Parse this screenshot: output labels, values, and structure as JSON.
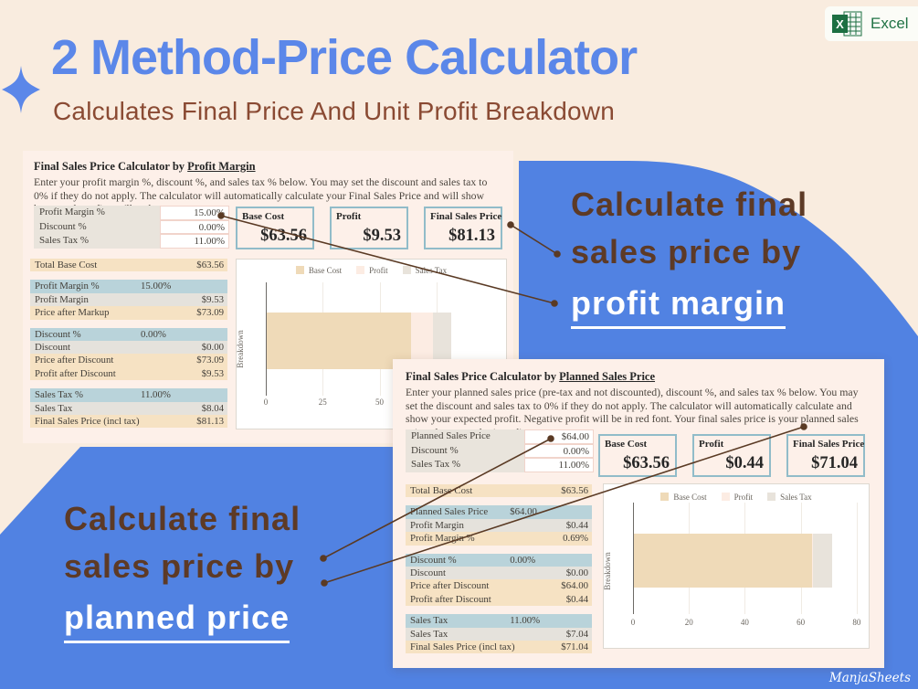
{
  "header": {
    "title": "2 Method-Price Calculator",
    "subtitle": "Calculates Final Price And Unit Profit Breakdown",
    "badge_label": "Excel"
  },
  "annotations": {
    "margin": {
      "line1": "Calculate final",
      "line2": "sales price by",
      "highlight": "profit margin"
    },
    "planned": {
      "line1": "Calculate final",
      "line2": "sales price by",
      "highlight": "planned price"
    }
  },
  "watermark": "ManjaSheets",
  "colors": {
    "background": "#f9ecdf",
    "blob_blue": "#5182e2",
    "title_blue": "#5b87e9",
    "brown_text": "#5d3a26",
    "subtitle_brown": "#8a4a33",
    "panel_bg": "#fdf0e9",
    "card_border": "#91bcc9",
    "row_tan": "#f6e2c3",
    "row_blue": "#b9d3da",
    "row_gray": "#e5e2dc",
    "excel_green": "#217346",
    "series": {
      "Base Cost": "#efdab8",
      "Profit": "#fcece3",
      "Sales Tax": "#e8e3db"
    }
  },
  "sheet_margin": {
    "heading_prefix": "Final Sales Price Calculator by ",
    "heading_link": "Profit Margin",
    "description": "Enter your profit margin %, discount %, and sales tax % below. You may set the discount and sales tax to 0% if they do not apply. The calculator will automatically calculate your Final Sales Price and will show how much profit you'll make.",
    "inputs": [
      {
        "label": "Profit Margin %",
        "value": "15.00%"
      },
      {
        "label": "Discount %",
        "value": "0.00%"
      },
      {
        "label": "Sales Tax %",
        "value": "11.00%"
      }
    ],
    "cards": [
      {
        "label": "Base Cost",
        "value": "$63.56"
      },
      {
        "label": "Profit",
        "value": "$9.53"
      },
      {
        "label": "Final Sales Price",
        "value": "$81.13"
      }
    ],
    "rows": [
      {
        "label": "Total Base Cost",
        "value": "$63.56",
        "style": "tan",
        "align": "right"
      },
      {
        "label": "Profit Margin %",
        "value": "15.00%",
        "style": "blue",
        "align": "mid",
        "gap": true
      },
      {
        "label": "Profit Margin",
        "value": "$9.53",
        "style": "gray",
        "align": "right"
      },
      {
        "label": "Price after Markup",
        "value": "$73.09",
        "style": "tan",
        "align": "right"
      },
      {
        "label": "Discount %",
        "value": "0.00%",
        "style": "blue",
        "align": "mid",
        "gap": true
      },
      {
        "label": "Discount",
        "value": "$0.00",
        "style": "gray",
        "align": "right"
      },
      {
        "label": "Price after Discount",
        "value": "$73.09",
        "style": "tan",
        "align": "right"
      },
      {
        "label": "Profit after Discount",
        "value": "$9.53",
        "style": "tan",
        "align": "right"
      },
      {
        "label": "Sales Tax %",
        "value": "11.00%",
        "style": "blue",
        "align": "mid",
        "gap": true
      },
      {
        "label": "Sales Tax",
        "value": "$8.04",
        "style": "gray",
        "align": "right"
      },
      {
        "label": "Final Sales Price (incl tax)",
        "value": "$81.13",
        "style": "tan",
        "align": "right"
      }
    ]
  },
  "sheet_planned": {
    "heading_prefix": "Final Sales Price Calculator by ",
    "heading_link": "Planned Sales Price",
    "description": "Enter your planned sales price (pre-tax and not discounted), discount %, and sales tax % below. You may set the discount and sales tax to 0% if they do not apply. The calculator will automatically calculate and show your expected profit. Negative profit will be in red font. Your final sales price is your planned sales price plus tax and minus discount.",
    "inputs": [
      {
        "label": "Planned Sales Price",
        "value": "$64.00"
      },
      {
        "label": "Discount %",
        "value": "0.00%"
      },
      {
        "label": "Sales Tax %",
        "value": "11.00%"
      }
    ],
    "cards": [
      {
        "label": "Base Cost",
        "value": "$63.56"
      },
      {
        "label": "Profit",
        "value": "$0.44"
      },
      {
        "label": "Final Sales Price",
        "value": "$71.04"
      }
    ],
    "rows": [
      {
        "label": "Total Base Cost",
        "value": "$63.56",
        "style": "tan",
        "align": "right"
      },
      {
        "label": "Planned Sales Price",
        "value": "$64.00",
        "style": "blue",
        "align": "mid",
        "gap": true
      },
      {
        "label": "Profit Margin",
        "value": "$0.44",
        "style": "gray",
        "align": "right"
      },
      {
        "label": "Profit Margin %",
        "value": "0.69%",
        "style": "tan",
        "align": "right"
      },
      {
        "label": "Discount %",
        "value": "0.00%",
        "style": "blue",
        "align": "mid",
        "gap": true
      },
      {
        "label": "Discount",
        "value": "$0.00",
        "style": "gray",
        "align": "right"
      },
      {
        "label": "Price after Discount",
        "value": "$64.00",
        "style": "tan",
        "align": "right"
      },
      {
        "label": "Profit after Discount",
        "value": "$0.44",
        "style": "tan",
        "align": "right"
      },
      {
        "label": "Sales Tax",
        "value": "11.00%",
        "style": "blue",
        "align": "mid",
        "gap": true
      },
      {
        "label": "Sales Tax",
        "value": "$7.04",
        "style": "gray",
        "align": "right"
      },
      {
        "label": "Final Sales Price (incl tax)",
        "value": "$71.04",
        "style": "tan",
        "align": "right"
      }
    ]
  },
  "chart_data": [
    {
      "type": "bar",
      "orientation": "horizontal",
      "stacked": true,
      "categories": [
        "Breakdown"
      ],
      "ylabel": "Breakdown",
      "series": [
        {
          "name": "Base Cost",
          "values": [
            63.56
          ]
        },
        {
          "name": "Profit",
          "values": [
            9.53
          ]
        },
        {
          "name": "Sales Tax",
          "values": [
            8.04
          ]
        }
      ],
      "legend": [
        "Base Cost",
        "Profit",
        "Sales Tax"
      ],
      "xticks": [
        0,
        25,
        50,
        75
      ],
      "xlim": [
        0,
        104
      ],
      "grid": true
    },
    {
      "type": "bar",
      "orientation": "horizontal",
      "stacked": true,
      "categories": [
        "Breakdown"
      ],
      "ylabel": "Breakdown",
      "series": [
        {
          "name": "Base Cost",
          "values": [
            63.56
          ]
        },
        {
          "name": "Profit",
          "values": [
            0.44
          ]
        },
        {
          "name": "Sales Tax",
          "values": [
            7.04
          ]
        }
      ],
      "legend": [
        "Base Cost",
        "Profit",
        "Sales Tax"
      ],
      "xticks": [
        0,
        20,
        40,
        60,
        80
      ],
      "xlim": [
        0,
        83
      ],
      "grid": true
    }
  ]
}
